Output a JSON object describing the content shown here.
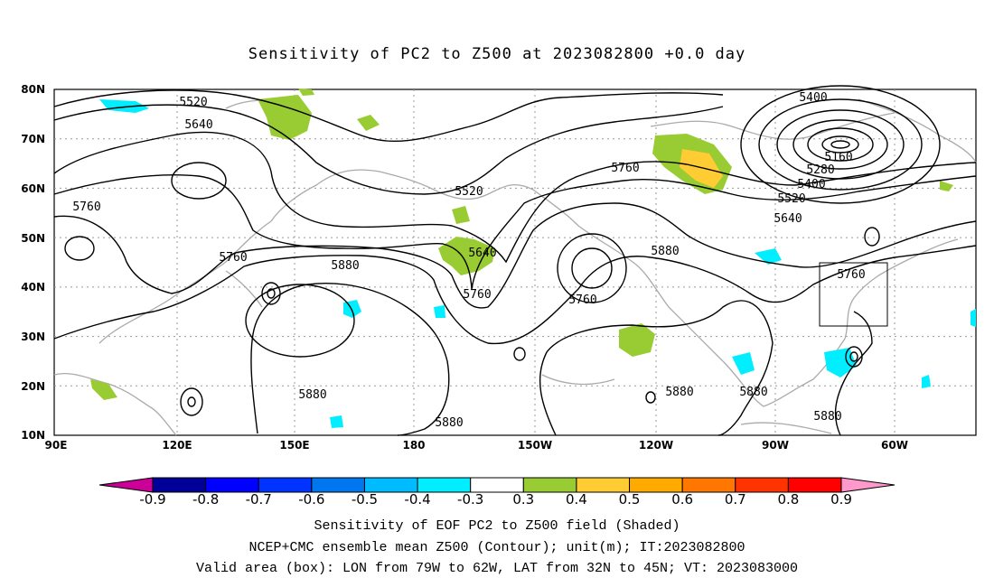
{
  "title": "Sensitivity of PC2 to Z500 at 2023082800 +0.0 day",
  "map": {
    "lat_labels": [
      "80N",
      "70N",
      "60N",
      "50N",
      "40N",
      "30N",
      "20N",
      "10N"
    ],
    "lon_labels": [
      "90E",
      "120E",
      "150E",
      "180",
      "150W",
      "120W",
      "90W",
      "60W"
    ],
    "grid": "dotted",
    "valid_box": {
      "lon_from": "79W",
      "lon_to": "62W",
      "lat_from": "32N",
      "lat_to": "45N"
    },
    "contour_labels": [
      "5400",
      "5520",
      "5640",
      "5760",
      "5520",
      "5160",
      "5280",
      "5400",
      "5520",
      "5640",
      "5760",
      "5640",
      "5880",
      "5760",
      "5760",
      "5880",
      "5760",
      "5880",
      "5880",
      "5880",
      "5880"
    ],
    "contour_color": "#000000",
    "coastline_color": "#aaaaaa"
  },
  "colorbar": {
    "labels": [
      "-0.9",
      "-0.8",
      "-0.7",
      "-0.6",
      "-0.5",
      "-0.4",
      "-0.3",
      "0.3",
      "0.4",
      "0.5",
      "0.6",
      "0.7",
      "0.8",
      "0.9"
    ],
    "colors": [
      "#000099",
      "#0000ff",
      "#0033ff",
      "#0077ee",
      "#00bbff",
      "#00eeff",
      "#ffffff",
      "#99cc33",
      "#ffcc33",
      "#ffaa00",
      "#ff7700",
      "#ff3300",
      "#ff0000"
    ],
    "low_end_color": "#cc0099",
    "high_end_color": "#ff99cc"
  },
  "footer": {
    "line1": "Sensitivity of EOF PC2 to Z500 field (Shaded)",
    "line2": "NCEP+CMC ensemble mean Z500 (Contour); unit(m); IT:2023082800",
    "line3": "Valid area (box): LON from 79W to 62W, LAT from 32N to 45N; VT: 2023083000"
  }
}
